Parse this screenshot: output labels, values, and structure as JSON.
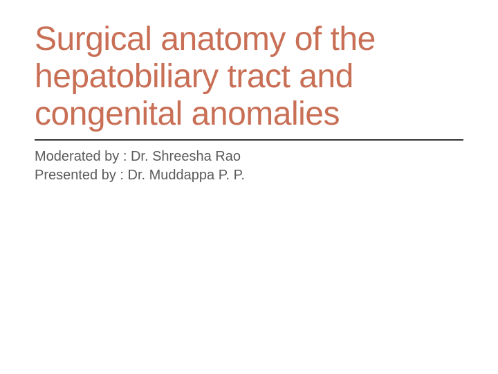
{
  "slide": {
    "title": "Surgical anatomy of the hepatobiliary tract  and congenital anomalies",
    "moderated_by": "Moderated by : Dr. Shreesha Rao",
    "presented_by": "Presented by : Dr. Muddappa P. P.",
    "title_color": "#c86f55",
    "subtitle_color": "#5a5a5a",
    "divider_color": "#333333",
    "background_color": "#ffffff",
    "title_fontsize": 48,
    "subtitle_fontsize": 20
  }
}
